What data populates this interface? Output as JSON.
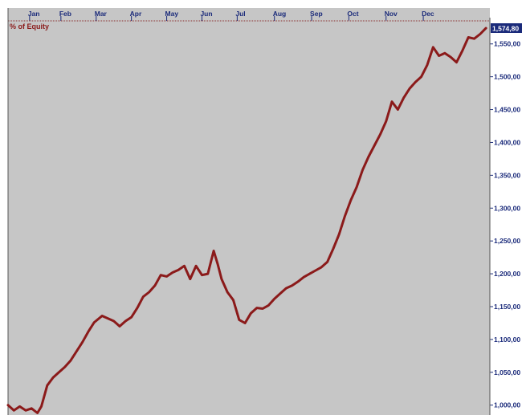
{
  "colors": {
    "plot_background": "#c6c6c6",
    "page_background": "#ffffff",
    "axis_text": "#1a2a7a",
    "series_line": "#8b1a1a",
    "legend_text": "#8b1a1a",
    "last_value_box": "#1a2a7a"
  },
  "chart_data": {
    "type": "line",
    "title": "",
    "xlabel": "",
    "ylabel": "",
    "legend": {
      "label": "% of Equity",
      "position": "top-left"
    },
    "x_tick_labels": [
      "Jan",
      "Feb",
      "Mar",
      "Apr",
      "May",
      "Jun",
      "Jul",
      "Aug",
      "Sep",
      "Oct",
      "Nov",
      "Dec"
    ],
    "y_tick_labels": [
      "1,550,00",
      "1,500,00",
      "1,450,00",
      "1,400,00",
      "1,350,00",
      "1,300,00",
      "1,250,00",
      "1,200,00",
      "1,150,00",
      "1,100,00",
      "1,050,00",
      "1,000,00"
    ],
    "y_tick_values": [
      1550,
      1500,
      1450,
      1400,
      1350,
      1300,
      1250,
      1200,
      1150,
      1100,
      1050,
      1000
    ],
    "last_value_label": "1,574,80",
    "ylim": [
      985,
      1590
    ],
    "xlim": [
      0,
      12.3
    ],
    "grid": false,
    "series": [
      {
        "name": "% of Equity",
        "x": [
          0,
          0.15,
          0.3,
          0.45,
          0.6,
          0.75,
          0.85,
          1.0,
          1.15,
          1.3,
          1.45,
          1.6,
          1.75,
          1.9,
          2.05,
          2.2,
          2.4,
          2.55,
          2.7,
          2.85,
          3.0,
          3.15,
          3.3,
          3.45,
          3.6,
          3.75,
          3.9,
          4.05,
          4.2,
          4.35,
          4.5,
          4.65,
          4.8,
          4.95,
          5.1,
          5.25,
          5.35,
          5.45,
          5.6,
          5.75,
          5.9,
          6.05,
          6.2,
          6.35,
          6.5,
          6.65,
          6.8,
          6.95,
          7.1,
          7.25,
          7.4,
          7.55,
          7.7,
          7.85,
          8.0,
          8.15,
          8.3,
          8.45,
          8.6,
          8.75,
          8.9,
          9.05,
          9.2,
          9.35,
          9.5,
          9.65,
          9.8,
          9.95,
          10.1,
          10.25,
          10.4,
          10.55,
          10.7,
          10.85,
          11.0,
          11.15,
          11.3,
          11.45,
          11.6,
          11.75,
          11.9,
          12.05,
          12.2
        ],
        "y": [
          1000,
          992,
          998,
          992,
          995,
          988,
          998,
          1030,
          1042,
          1050,
          1058,
          1068,
          1082,
          1096,
          1112,
          1126,
          1136,
          1132,
          1128,
          1120,
          1128,
          1134,
          1148,
          1165,
          1172,
          1182,
          1198,
          1196,
          1202,
          1206,
          1212,
          1192,
          1212,
          1198,
          1200,
          1235,
          1215,
          1192,
          1172,
          1160,
          1130,
          1125,
          1140,
          1148,
          1147,
          1152,
          1162,
          1170,
          1178,
          1182,
          1188,
          1195,
          1200,
          1205,
          1210,
          1218,
          1238,
          1260,
          1288,
          1312,
          1332,
          1358,
          1378,
          1395,
          1412,
          1432,
          1462,
          1450,
          1468,
          1482,
          1492,
          1500,
          1518,
          1545,
          1532,
          1536,
          1530,
          1522,
          1540,
          1560,
          1558,
          1565,
          1574
        ]
      }
    ]
  }
}
